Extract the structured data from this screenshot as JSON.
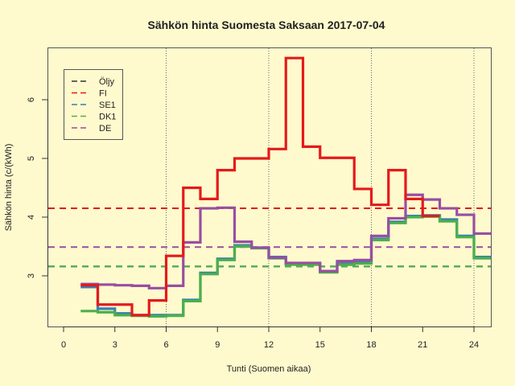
{
  "chart_data": {
    "type": "line",
    "step": true,
    "title": "Sähkön hinta Suomesta Saksaan 2017-07-04",
    "xlabel": "Tunti (Suomen aikaa)",
    "ylabel": "Sähkön hinta (c/(kWh)",
    "xticks": [
      0,
      3,
      6,
      9,
      12,
      15,
      18,
      21,
      24
    ],
    "yticks": [
      3,
      4,
      5,
      6
    ],
    "xlim": [
      -0.8,
      25
    ],
    "ylim": [
      2.1,
      6.85
    ],
    "vlines": [
      6,
      12,
      18,
      24
    ],
    "legend": {
      "position": "top-left",
      "entries": [
        {
          "label": "Öljy",
          "color": "#333333"
        },
        {
          "label": "FI",
          "color": "#e41a1c"
        },
        {
          "label": "SE1",
          "color": "#377eb8"
        },
        {
          "label": "DK1",
          "color": "#4daf4a"
        },
        {
          "label": "DE",
          "color": "#984ea3"
        }
      ]
    },
    "x": [
      1,
      2,
      3,
      4,
      5,
      6,
      7,
      8,
      9,
      10,
      11,
      12,
      13,
      14,
      15,
      16,
      17,
      18,
      19,
      20,
      21,
      22,
      23,
      24
    ],
    "series": [
      {
        "name": "SE1",
        "color": "#377eb8",
        "values": [
          2.81,
          2.44,
          2.36,
          2.33,
          2.33,
          2.33,
          2.59,
          3.05,
          3.29,
          3.52,
          3.48,
          3.32,
          3.21,
          3.21,
          3.07,
          3.21,
          3.23,
          3.63,
          3.92,
          4.02,
          4.03,
          3.96,
          3.68,
          3.32
        ],
        "average": 3.16
      },
      {
        "name": "DK1",
        "color": "#4daf4a",
        "values": [
          2.4,
          2.38,
          2.33,
          2.32,
          2.31,
          2.32,
          2.57,
          3.03,
          3.27,
          3.5,
          3.47,
          3.3,
          3.19,
          3.19,
          3.06,
          3.19,
          3.21,
          3.61,
          3.9,
          4.0,
          4.01,
          3.93,
          3.66,
          3.3
        ],
        "average": 3.16
      },
      {
        "name": "DE",
        "color": "#984ea3",
        "values": [
          2.86,
          2.85,
          2.84,
          2.83,
          2.79,
          2.83,
          3.57,
          4.15,
          4.16,
          3.58,
          3.48,
          3.31,
          3.22,
          3.22,
          3.08,
          3.25,
          3.27,
          3.68,
          3.98,
          4.38,
          4.3,
          4.15,
          4.04,
          3.72
        ],
        "average": 3.49
      },
      {
        "name": "FI",
        "color": "#e41a1c",
        "values": [
          2.84,
          2.51,
          2.51,
          2.33,
          2.58,
          3.34,
          4.5,
          4.31,
          4.8,
          5.0,
          5.0,
          5.16,
          6.71,
          5.2,
          5.01,
          5.01,
          4.48,
          4.21,
          4.8,
          4.31,
          4.02,
          null,
          null,
          null
        ],
        "average": 4.15
      },
      {
        "name": "Öljy",
        "color": "#333333",
        "values": [],
        "average": 3.16
      }
    ]
  }
}
